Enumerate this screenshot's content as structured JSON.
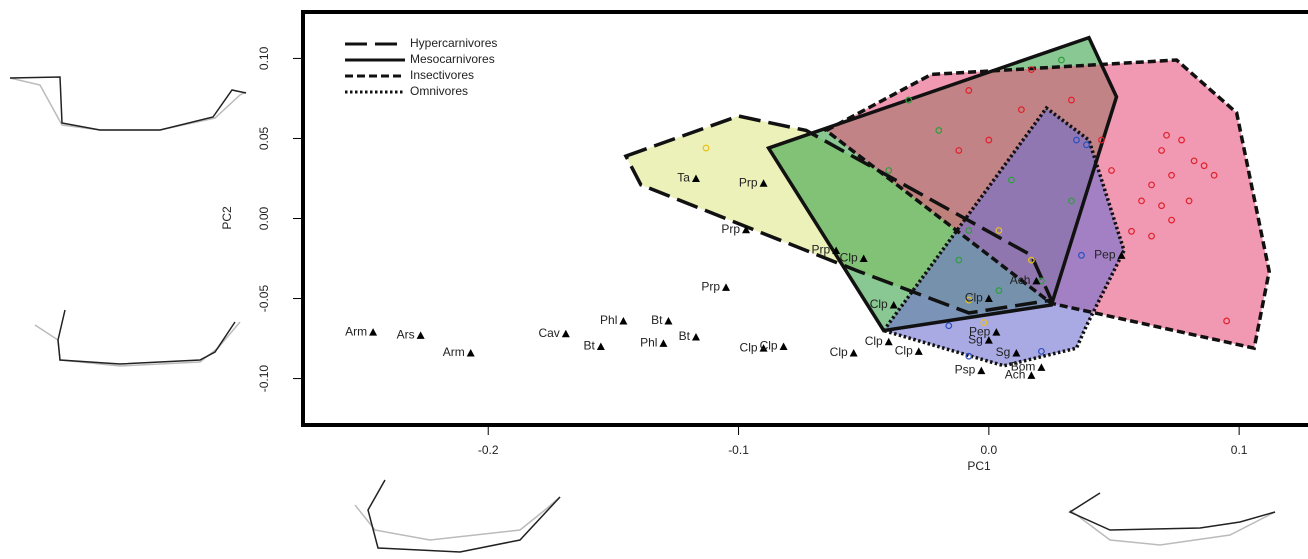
{
  "chart_data": {
    "type": "scatter",
    "xlabel": "PC1",
    "ylabel": "PC2",
    "xlim": [
      -0.274,
      0.1335
    ],
    "ylim": [
      -0.129,
      0.129
    ],
    "xticks": [
      -0.2,
      -0.1,
      {
        "value": 0,
        "label": "0.0"
      },
      0.1
    ],
    "yticks": [
      {
        "value": 0.1,
        "label": "0.10"
      },
      {
        "value": 0.05,
        "label": "0.05"
      },
      {
        "value": 0,
        "label": "0.00"
      },
      {
        "value": -0.05,
        "label": "-0.05"
      },
      {
        "value": -0.1,
        "label": "-0.10"
      }
    ],
    "legend": "upper left",
    "series": [
      {
        "name": "Hypercarnivores",
        "color": "#e6c21a",
        "fill": "#dfe68a",
        "dash": "long",
        "hull_x": [
          -0.145,
          -0.1,
          -0.073,
          0.017,
          0.025,
          -0.008,
          -0.052,
          -0.139
        ],
        "hull_y": [
          0.039,
          0.064,
          0.055,
          -0.023,
          -0.051,
          -0.059,
          -0.033,
          0.021
        ],
        "x": [
          -0.113,
          0.004,
          0.017,
          -0.008,
          -0.002
        ],
        "y": [
          0.044,
          -0.0075,
          -0.026,
          -0.051,
          -0.065
        ]
      },
      {
        "name": "Mesocarnivores",
        "color": "#2e9e3e",
        "fill": "#3aa34a",
        "dash": "solid",
        "hull_x": [
          -0.088,
          0.04,
          0.051,
          0.025,
          -0.042
        ],
        "hull_y": [
          0.044,
          0.113,
          0.076,
          -0.054,
          -0.07
        ],
        "x": [
          -0.032,
          -0.02,
          -0.04,
          0.009,
          0.029,
          0.033,
          -0.012,
          0.004,
          0.021,
          -0.008
        ],
        "y": [
          0.074,
          0.055,
          0.03,
          0.024,
          0.099,
          0.011,
          -0.026,
          -0.045,
          -0.039,
          -0.0075
        ]
      },
      {
        "name": "Insectivores",
        "color": "#e0202a",
        "fill": "#e8557f",
        "dash": "dashed",
        "hull_x": [
          -0.065,
          -0.023,
          0.075,
          0.099,
          0.112,
          0.106,
          0.025
        ],
        "hull_y": [
          0.055,
          0.09,
          0.099,
          0.066,
          -0.033,
          -0.081,
          -0.053
        ],
        "x": [
          0.071,
          0.069,
          0.077,
          0.082,
          0.073,
          0.065,
          0.086,
          0.08,
          0.069,
          0.061,
          0.09,
          0.073,
          0.065,
          0.057,
          0.049,
          0.045,
          0.033,
          0.013,
          0.0,
          -0.012,
          0.095,
          0.017,
          -0.008
        ],
        "y": [
          0.052,
          0.0425,
          0.049,
          0.036,
          0.027,
          0.021,
          0.033,
          0.011,
          0.008,
          0.011,
          0.027,
          -0.001,
          -0.011,
          -0.008,
          0.03,
          0.049,
          0.074,
          0.068,
          0.049,
          0.0425,
          -0.064,
          0.093,
          0.08
        ]
      },
      {
        "name": "Omnivores",
        "color": "#2a4fc0",
        "fill": "#6f6fd0",
        "dash": "dotted",
        "hull_x": [
          -0.042,
          0.023,
          0.04,
          0.054,
          0.039,
          0.035,
          0.006
        ],
        "hull_y": [
          -0.07,
          0.069,
          0.049,
          -0.02,
          -0.067,
          -0.081,
          -0.092
        ],
        "x": [
          0.035,
          0.039,
          -0.016,
          -0.008,
          0.021,
          0.037
        ],
        "y": [
          0.049,
          0.046,
          -0.067,
          -0.086,
          -0.083,
          -0.023
        ]
      }
    ],
    "fossils": {
      "labels": [
        "Arm",
        "Ars",
        "Arm",
        "Cav",
        "Bt",
        "Phl",
        "Phl",
        "Bt",
        "Bt",
        "Prp",
        "Prp",
        "Prp",
        "Ta",
        "Prp",
        "Clp",
        "Clp",
        "Clp",
        "Clp",
        "Clp",
        "Clp",
        "Clp",
        "Clp",
        "Sg",
        "Pep",
        "Sg",
        "Psp",
        "Ach",
        "Bom",
        "Ach",
        "Pep"
      ],
      "x": [
        -0.246,
        -0.227,
        -0.207,
        -0.169,
        -0.155,
        -0.146,
        -0.13,
        -0.128,
        -0.117,
        -0.105,
        -0.097,
        -0.09,
        -0.117,
        -0.061,
        -0.05,
        -0.09,
        -0.082,
        -0.054,
        -0.038,
        -0.04,
        -0.028,
        0.0,
        0.0,
        0.003,
        0.011,
        -0.003,
        0.017,
        0.021,
        0.019,
        0.053
      ],
      "y": [
        -0.071,
        -0.073,
        -0.084,
        -0.072,
        -0.08,
        -0.064,
        -0.078,
        -0.064,
        -0.074,
        -0.043,
        -0.007,
        0.022,
        0.025,
        -0.02,
        -0.025,
        -0.081,
        -0.08,
        -0.084,
        -0.054,
        -0.077,
        -0.083,
        -0.05,
        -0.076,
        -0.071,
        -0.084,
        -0.095,
        -0.098,
        -0.093,
        -0.039,
        -0.023
      ]
    }
  }
}
